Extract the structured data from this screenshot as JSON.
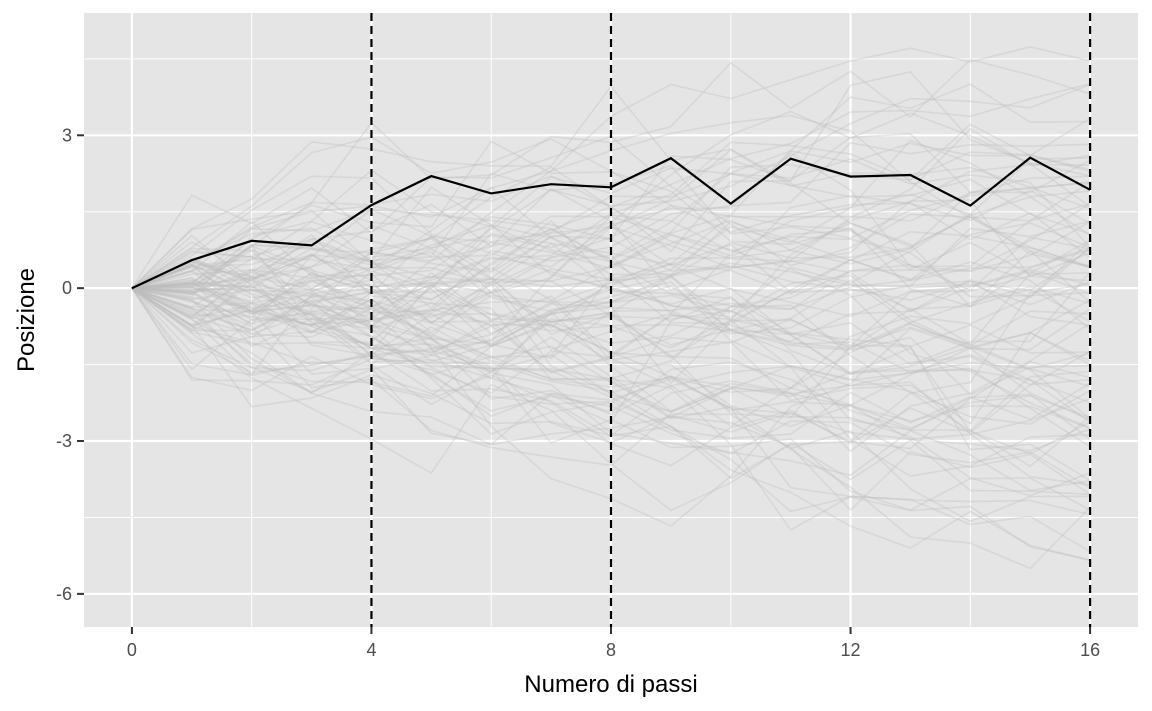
{
  "chart_data": {
    "type": "line",
    "xlabel": "Numero di passi",
    "ylabel": "Posizione",
    "xlim": [
      -0.8,
      16.8
    ],
    "ylim": [
      -6.65,
      5.4
    ],
    "x_ticks": [
      0,
      4,
      8,
      12,
      16
    ],
    "x_tick_labels": [
      "0",
      "4",
      "8",
      "12",
      "16"
    ],
    "y_ticks": [
      -6,
      -3,
      0,
      3
    ],
    "y_tick_labels": [
      "-6",
      "-3",
      "0",
      "3"
    ],
    "grid": true,
    "vertical_reference_lines": [
      4,
      8,
      16
    ],
    "colors": {
      "panel_background": "#e5e5e5",
      "grid": "#ffffff",
      "highlighted_path": "#000000",
      "background_paths": "#bdbdbd",
      "reference_lines": "#000000"
    },
    "highlighted_path": {
      "x": [
        0,
        1,
        2,
        3,
        4,
        5,
        6,
        7,
        8,
        9,
        10,
        11,
        12,
        13,
        14,
        15,
        16
      ],
      "y": [
        0,
        0.55,
        0.93,
        0.84,
        1.63,
        2.2,
        1.86,
        2.04,
        1.98,
        2.55,
        1.66,
        2.54,
        2.19,
        2.22,
        1.62,
        2.56,
        1.93
      ]
    },
    "background_paths": {
      "count": 100,
      "steps": 16,
      "approx_range": [
        -6.0,
        4.9
      ]
    }
  }
}
